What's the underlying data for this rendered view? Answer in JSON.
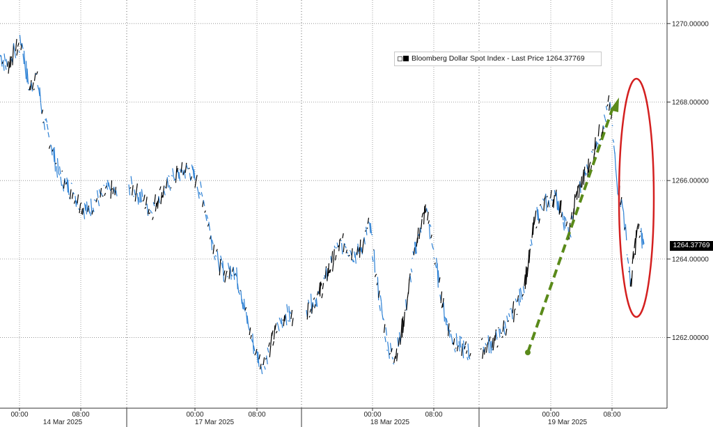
{
  "chart_data": {
    "type": "line",
    "series": [
      {
        "name": "Bloomberg Dollar Spot Index - Last Price",
        "last_value_label": "1264.37769",
        "values": [
          1269.2,
          1268.9,
          1269.3,
          1269.5,
          1268.3,
          1268.7,
          1267.5,
          1266.9,
          1266.2,
          1265.9,
          1265.7,
          1265.4,
          1265.2,
          1265.5,
          1265.6,
          1265.8,
          1265.6,
          1265.9,
          1265.7,
          1265.5,
          1265.2,
          1265.6,
          1265.8,
          1266.1,
          1266.2,
          1266.3,
          1266.0,
          1265.5,
          1264.6,
          1263.9,
          1263.6,
          1263.8,
          1263.2,
          1262.3,
          1261.6,
          1261.3,
          1261.8,
          1262.3,
          1262.6,
          1262.5,
          1262.7,
          1262.9,
          1263.1,
          1263.5,
          1263.9,
          1264.3,
          1264.4,
          1264.2,
          1264.1,
          1264.4,
          1264.9,
          1263.6,
          1262.6,
          1261.7,
          1261.5,
          1262.1,
          1263.0,
          1264.1,
          1264.8,
          1265.3,
          1264.3,
          1263.4,
          1262.5,
          1262.0,
          1261.8,
          1261.7,
          1261.6,
          1261.7,
          1261.8,
          1261.9,
          1262.1,
          1262.4,
          1262.7,
          1263.1,
          1263.8,
          1265.0,
          1265.3,
          1265.5,
          1265.6,
          1265.2,
          1264.5,
          1265.6,
          1266.0,
          1266.4,
          1267.0,
          1267.4,
          1268.0,
          1266.0,
          1265.2,
          1263.3,
          1264.8,
          1264.38
        ]
      }
    ],
    "ylim": [
      1260.2,
      1270.6
    ],
    "y_ticks": [
      "1262.00000",
      "1264.00000",
      "1266.00000",
      "1268.00000",
      "1270.00000"
    ],
    "y_tick_values": [
      1262,
      1264,
      1266,
      1268,
      1270
    ],
    "x_tick_labels": [
      "00:00",
      "08:00",
      "00:00",
      "08:00",
      "00:00",
      "08:00",
      "00:00",
      "08:00"
    ],
    "date_labels": [
      "14 Mar 2025",
      "17 Mar 2025",
      "18 Mar 2025",
      "19 Mar 2025"
    ],
    "grid": true,
    "legend_position": "top-right",
    "annotations": [
      {
        "kind": "dashed-arrow",
        "color": "#5a8a1a",
        "description": "upward trend arrow"
      },
      {
        "kind": "ellipse",
        "color": "#d42020",
        "description": "circled recent drop"
      }
    ],
    "colors": {
      "line_up": "#000000",
      "line_down": "#2a7fd4",
      "grid": "#888888"
    }
  }
}
